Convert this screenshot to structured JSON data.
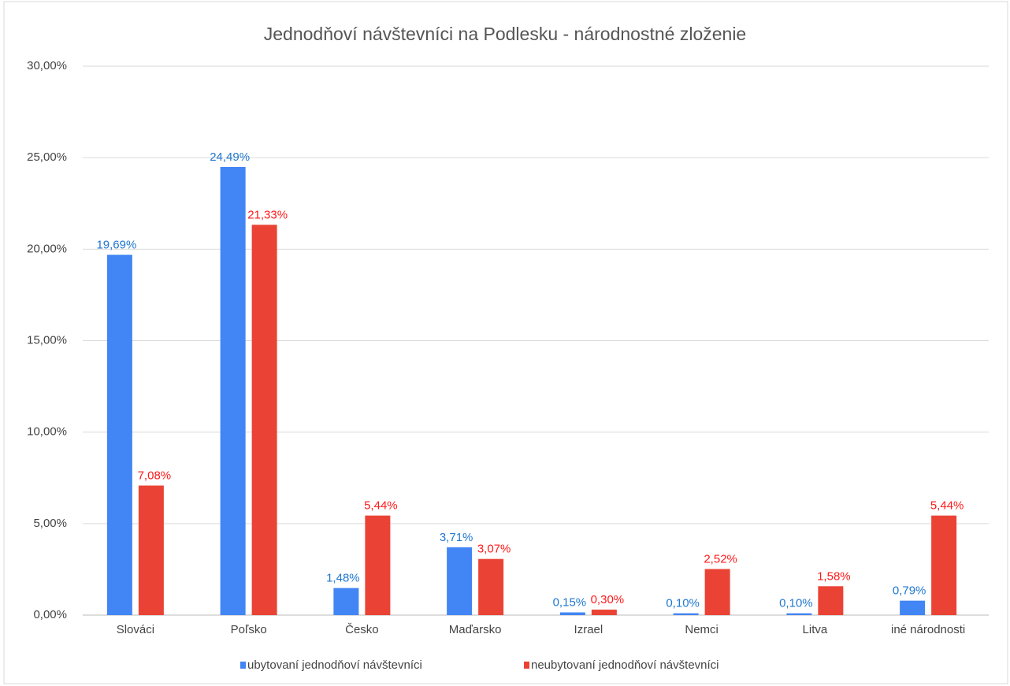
{
  "chart_data": {
    "type": "bar",
    "title": "Jednodňoví návštevníci na Podlesku - národnostné zloženie",
    "categories": [
      "Slováci",
      "Poľsko",
      "Česko",
      "Maďarsko",
      "Izrael",
      "Nemci",
      "Litva",
      "iné národnosti"
    ],
    "series": [
      {
        "name": "ubytovaní jednodňoví návštevníci",
        "color": "#4285f4",
        "label_color": "#1f77d0",
        "values": [
          19.69,
          24.49,
          1.48,
          3.71,
          0.15,
          0.1,
          0.1,
          0.79
        ],
        "value_labels": [
          "19,69%",
          "24,49%",
          "1,48%",
          "3,71%",
          "0,15%",
          "0,10%",
          "0,10%",
          "0,79%"
        ]
      },
      {
        "name": "neubytovaní jednodňoví návštevníci",
        "color": "#ea4335",
        "label_color": "#ff1a1a",
        "values": [
          7.08,
          21.33,
          5.44,
          3.07,
          0.3,
          2.52,
          1.58,
          5.44
        ],
        "value_labels": [
          "7,08%",
          "21,33%",
          "5,44%",
          "3,07%",
          "0,30%",
          "2,52%",
          "1,58%",
          "5,44%"
        ]
      }
    ],
    "ylim": [
      0,
      30
    ],
    "yticks": [
      {
        "value": 0,
        "label": "0,00%"
      },
      {
        "value": 5,
        "label": "5,00%"
      },
      {
        "value": 10,
        "label": "10,00%"
      },
      {
        "value": 15,
        "label": "15,00%"
      },
      {
        "value": 20,
        "label": "20,00%"
      },
      {
        "value": 25,
        "label": "25,00%"
      },
      {
        "value": 30,
        "label": "30,00%"
      }
    ],
    "grid": true,
    "legend": "bottom"
  }
}
